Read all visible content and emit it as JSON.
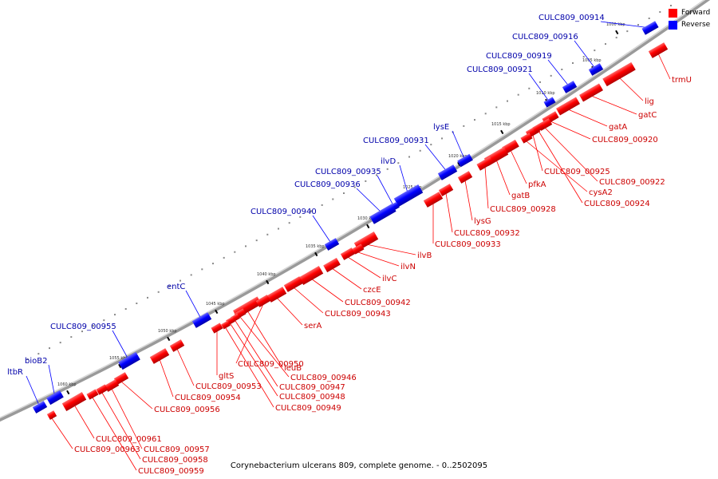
{
  "caption": "Corynebacterium ulcerans 809, complete genome. - 0..2502095",
  "legend": [
    {
      "label": "Forward",
      "color": "#ff0000"
    },
    {
      "label": "Reverse",
      "color": "#0000ff"
    }
  ],
  "colors": {
    "forward": "#ff0000",
    "reverse": "#0000ff",
    "forward_label": "#cc0000",
    "reverse_label": "#0000aa"
  },
  "ticks": [
    "1000 kbp",
    "1005 kbp",
    "1010 kbp",
    "1015 kbp",
    "1020 kbp",
    "1025 kbp",
    "1030 kbp",
    "1035 kbp",
    "1040 kbp",
    "1045 kbp",
    "1050 kbp",
    "1055 kbp",
    "1060 kbp"
  ],
  "reverse_genes": [
    "CULC809_00914",
    "CULC809_00916",
    "CULC809_00919",
    "CULC809_00921",
    "lysE",
    "CULC809_00931",
    "ilvD",
    "CULC809_00935",
    "CULC809_00936",
    "CULC809_00940",
    "entC",
    "CULC809_00955",
    "bioB2",
    "ltbR"
  ],
  "forward_genes": [
    "trmU",
    "lig",
    "gatC",
    "gatA",
    "CULC809_00920",
    "CULC809_00922",
    "CULC809_00925",
    "cysA2",
    "CULC809_00924",
    "pfkA",
    "gatB",
    "CULC809_00928",
    "lysG",
    "CULC809_00932",
    "CULC809_00933",
    "ilvB",
    "ilvN",
    "ilvC",
    "czcE",
    "CULC809_00942",
    "CULC809_00943",
    "serA",
    "leuB",
    "CULC809_00946",
    "CULC809_00947",
    "CULC809_00948",
    "CULC809_00949",
    "CULC809_00950",
    "gltS",
    "CULC809_00953",
    "CULC809_00954",
    "CULC809_00956",
    "CULC809_00961",
    "CULC809_00957",
    "CULC809_00963",
    "CULC809_00958",
    "CULC809_00959"
  ]
}
